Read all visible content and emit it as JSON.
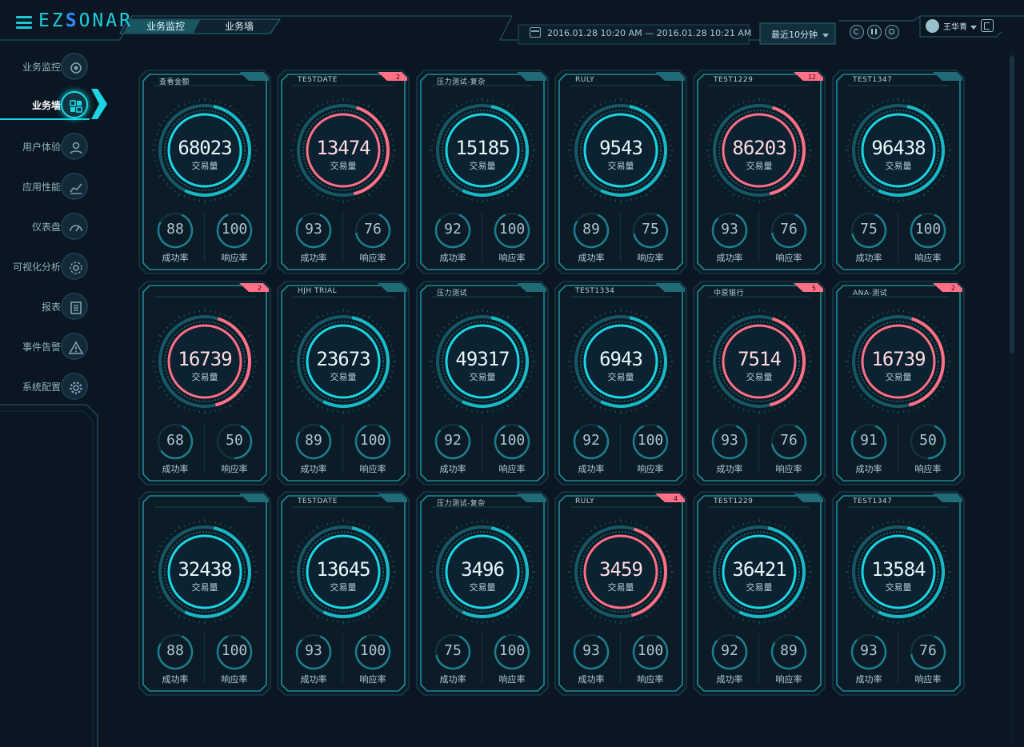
{
  "app": {
    "logo_prefix": "EZ",
    "logo_s": "S",
    "logo_suffix": "ONAR"
  },
  "header": {
    "breadcrumb": [
      "业务监控",
      "业务墙"
    ],
    "time_range": "2016.01.28 10:20 AM — 2016.01.28 10:21 AM",
    "period": "最近10分钟",
    "user": "王华青"
  },
  "sidebar": {
    "items": [
      {
        "label": "业务监控",
        "icon": "eye-icon",
        "active": false
      },
      {
        "label": "业务墙",
        "icon": "grid-qr-icon",
        "active": true
      },
      {
        "label": "用户体验",
        "icon": "user-icon",
        "active": false
      },
      {
        "label": "应用性能",
        "icon": "chart-icon",
        "active": false
      },
      {
        "label": "仪表盘",
        "icon": "gauge-icon",
        "active": false
      },
      {
        "label": "可视化分析",
        "icon": "gear-network-icon",
        "active": false
      },
      {
        "label": "报表",
        "icon": "report-icon",
        "active": false
      },
      {
        "label": "事件告警",
        "icon": "warning-icon",
        "active": false
      },
      {
        "label": "系统配置",
        "icon": "gear-icon",
        "active": false
      }
    ]
  },
  "colors": {
    "cyan": "#19d6e2",
    "red": "#ff6f86",
    "dim": "#17505c"
  },
  "labels": {
    "volume": "交易量",
    "success": "成功率",
    "response": "响应率"
  },
  "cards": [
    {
      "name": "查看金额",
      "value": "68023",
      "success": "88",
      "response": "100",
      "alert": "",
      "status": "ok",
      "succ_pct": 0.88,
      "resp_pct": 1.0
    },
    {
      "name": "TESTDATE",
      "value": "13474",
      "success": "93",
      "response": "76",
      "alert": "2",
      "status": "alert",
      "succ_pct": 0.93,
      "resp_pct": 0.76
    },
    {
      "name": "压力测试-复杂",
      "value": "15185",
      "success": "92",
      "response": "100",
      "alert": "",
      "status": "ok",
      "succ_pct": 0.92,
      "resp_pct": 1.0
    },
    {
      "name": "RULY",
      "value": "9543",
      "success": "89",
      "response": "75",
      "alert": "",
      "status": "ok",
      "succ_pct": 0.89,
      "resp_pct": 0.75
    },
    {
      "name": "TEST1229",
      "value": "86203",
      "success": "93",
      "response": "76",
      "alert": "12",
      "status": "alert",
      "succ_pct": 0.93,
      "resp_pct": 0.76
    },
    {
      "name": "TEST1347",
      "value": "96438",
      "success": "75",
      "response": "100",
      "alert": "",
      "status": "ok",
      "succ_pct": 0.75,
      "resp_pct": 1.0
    },
    {
      "name": "",
      "value": "16739",
      "success": "68",
      "response": "50",
      "alert": "2",
      "status": "alert",
      "succ_pct": 0.68,
      "resp_pct": 0.5
    },
    {
      "name": "HJH TRIAL",
      "value": "23673",
      "success": "89",
      "response": "100",
      "alert": "",
      "status": "ok",
      "succ_pct": 0.89,
      "resp_pct": 1.0
    },
    {
      "name": "压力测试",
      "value": "49317",
      "success": "92",
      "response": "100",
      "alert": "",
      "status": "ok",
      "succ_pct": 0.92,
      "resp_pct": 1.0
    },
    {
      "name": "TEST1334",
      "value": "6943",
      "success": "92",
      "response": "100",
      "alert": "",
      "status": "ok",
      "succ_pct": 0.92,
      "resp_pct": 1.0
    },
    {
      "name": "中原银行",
      "value": "7514",
      "success": "93",
      "response": "76",
      "alert": "5",
      "status": "alert",
      "succ_pct": 0.93,
      "resp_pct": 0.76
    },
    {
      "name": "ANA-测试",
      "value": "16739",
      "success": "91",
      "response": "50",
      "alert": "2",
      "status": "alert",
      "succ_pct": 0.91,
      "resp_pct": 0.5
    },
    {
      "name": "",
      "value": "32438",
      "success": "88",
      "response": "100",
      "alert": "",
      "status": "ok",
      "succ_pct": 0.88,
      "resp_pct": 1.0
    },
    {
      "name": "TESTDATE",
      "value": "13645",
      "success": "93",
      "response": "100",
      "alert": "",
      "status": "ok",
      "succ_pct": 0.93,
      "resp_pct": 1.0
    },
    {
      "name": "压力测试-复杂",
      "value": "3496",
      "success": "75",
      "response": "100",
      "alert": "",
      "status": "ok",
      "succ_pct": 0.75,
      "resp_pct": 1.0
    },
    {
      "name": "RULY",
      "value": "3459",
      "success": "93",
      "response": "100",
      "alert": "4",
      "status": "alert",
      "succ_pct": 0.93,
      "resp_pct": 1.0
    },
    {
      "name": "TEST1229",
      "value": "36421",
      "success": "92",
      "response": "89",
      "alert": "",
      "status": "ok",
      "succ_pct": 0.92,
      "resp_pct": 0.89
    },
    {
      "name": "TEST1347",
      "value": "13584",
      "success": "93",
      "response": "76",
      "alert": "",
      "status": "ok",
      "succ_pct": 0.93,
      "resp_pct": 0.76
    }
  ]
}
